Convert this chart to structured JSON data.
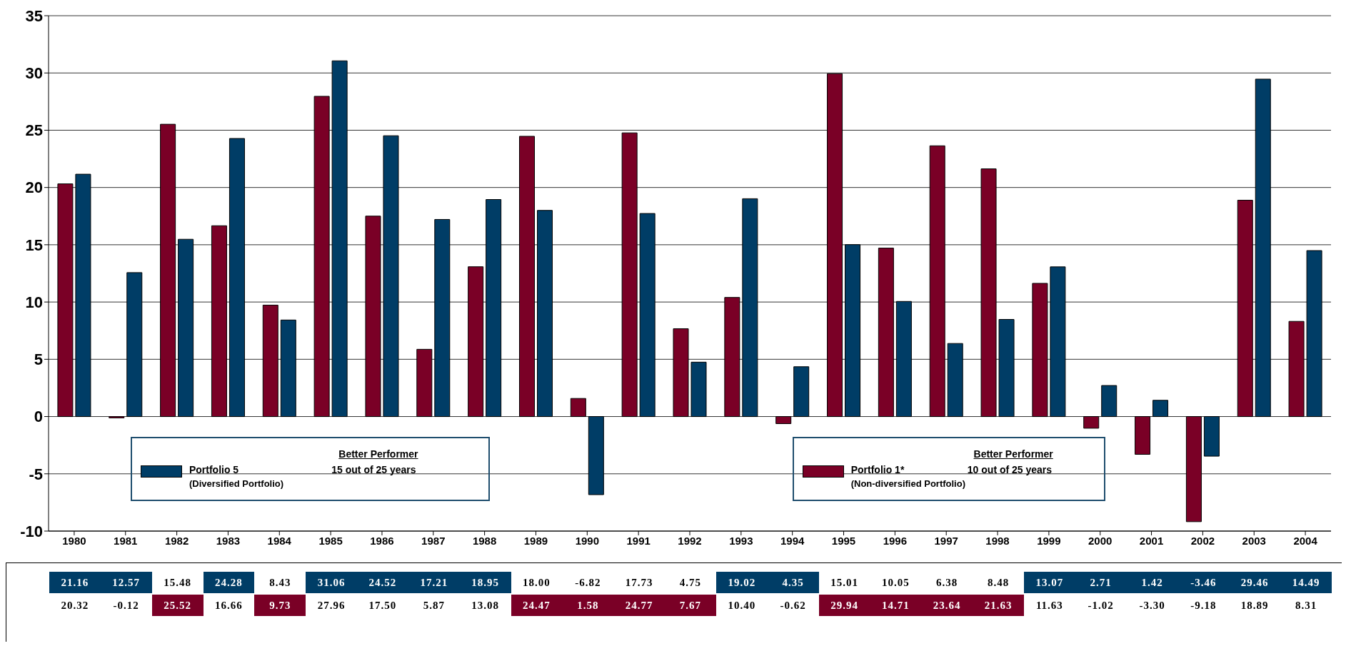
{
  "chart_data": {
    "type": "bar",
    "categories": [
      "1980",
      "1981",
      "1982",
      "1983",
      "1984",
      "1985",
      "1986",
      "1987",
      "1988",
      "1989",
      "1990",
      "1991",
      "1992",
      "1993",
      "1994",
      "1995",
      "1996",
      "1997",
      "1998",
      "1999",
      "2000",
      "2001",
      "2002",
      "2003",
      "2004"
    ],
    "series": [
      {
        "name": "Portfolio 1*",
        "color": "#7a0026",
        "values": [
          20.32,
          -0.12,
          25.52,
          16.66,
          9.73,
          27.96,
          17.5,
          5.87,
          13.08,
          24.47,
          1.58,
          24.77,
          7.67,
          10.4,
          -0.62,
          29.94,
          14.71,
          23.64,
          21.63,
          11.63,
          -1.02,
          -3.3,
          -9.18,
          18.89,
          8.31
        ],
        "value_labels": [
          "20.32",
          "-0.12",
          "25.52",
          "16.66",
          "9.73",
          "27.96",
          "17.50",
          "5.87",
          "13.08",
          "24.47",
          "1.58",
          "24.77",
          "7.67",
          "10.40",
          "-0.62",
          "29.94",
          "14.71",
          "23.64",
          "21.63",
          "11.63",
          "-1.02",
          "-3.30",
          "-9.18",
          "18.89",
          "8.31"
        ]
      },
      {
        "name": "Portfolio 5",
        "color": "#003d66",
        "values": [
          21.16,
          12.57,
          15.48,
          24.28,
          8.43,
          31.06,
          24.52,
          17.21,
          18.95,
          18.0,
          -6.82,
          17.73,
          4.75,
          19.02,
          4.35,
          15.01,
          10.05,
          6.38,
          8.48,
          13.07,
          2.71,
          1.42,
          -3.46,
          29.46,
          14.49
        ],
        "value_labels": [
          "21.16",
          "12.57",
          "15.48",
          "24.28",
          "8.43",
          "31.06",
          "24.52",
          "17.21",
          "18.95",
          "18.00",
          "-6.82",
          "17.73",
          "4.75",
          "19.02",
          "4.35",
          "15.01",
          "10.05",
          "6.38",
          "8.48",
          "13.07",
          "2.71",
          "1.42",
          "-3.46",
          "29.46",
          "14.49"
        ]
      }
    ],
    "ylim": [
      -10,
      35
    ],
    "yticks": [
      -10,
      -5,
      0,
      5,
      10,
      15,
      20,
      25,
      30,
      35
    ],
    "grid": "y",
    "legend": "bottom",
    "annotations": [
      "Better Performer",
      "15 out of 25 years",
      "(Diversified Portfolio)",
      "Better Performer",
      "10 out of 25 years",
      "(Non-diversified Portfolio)"
    ]
  }
}
